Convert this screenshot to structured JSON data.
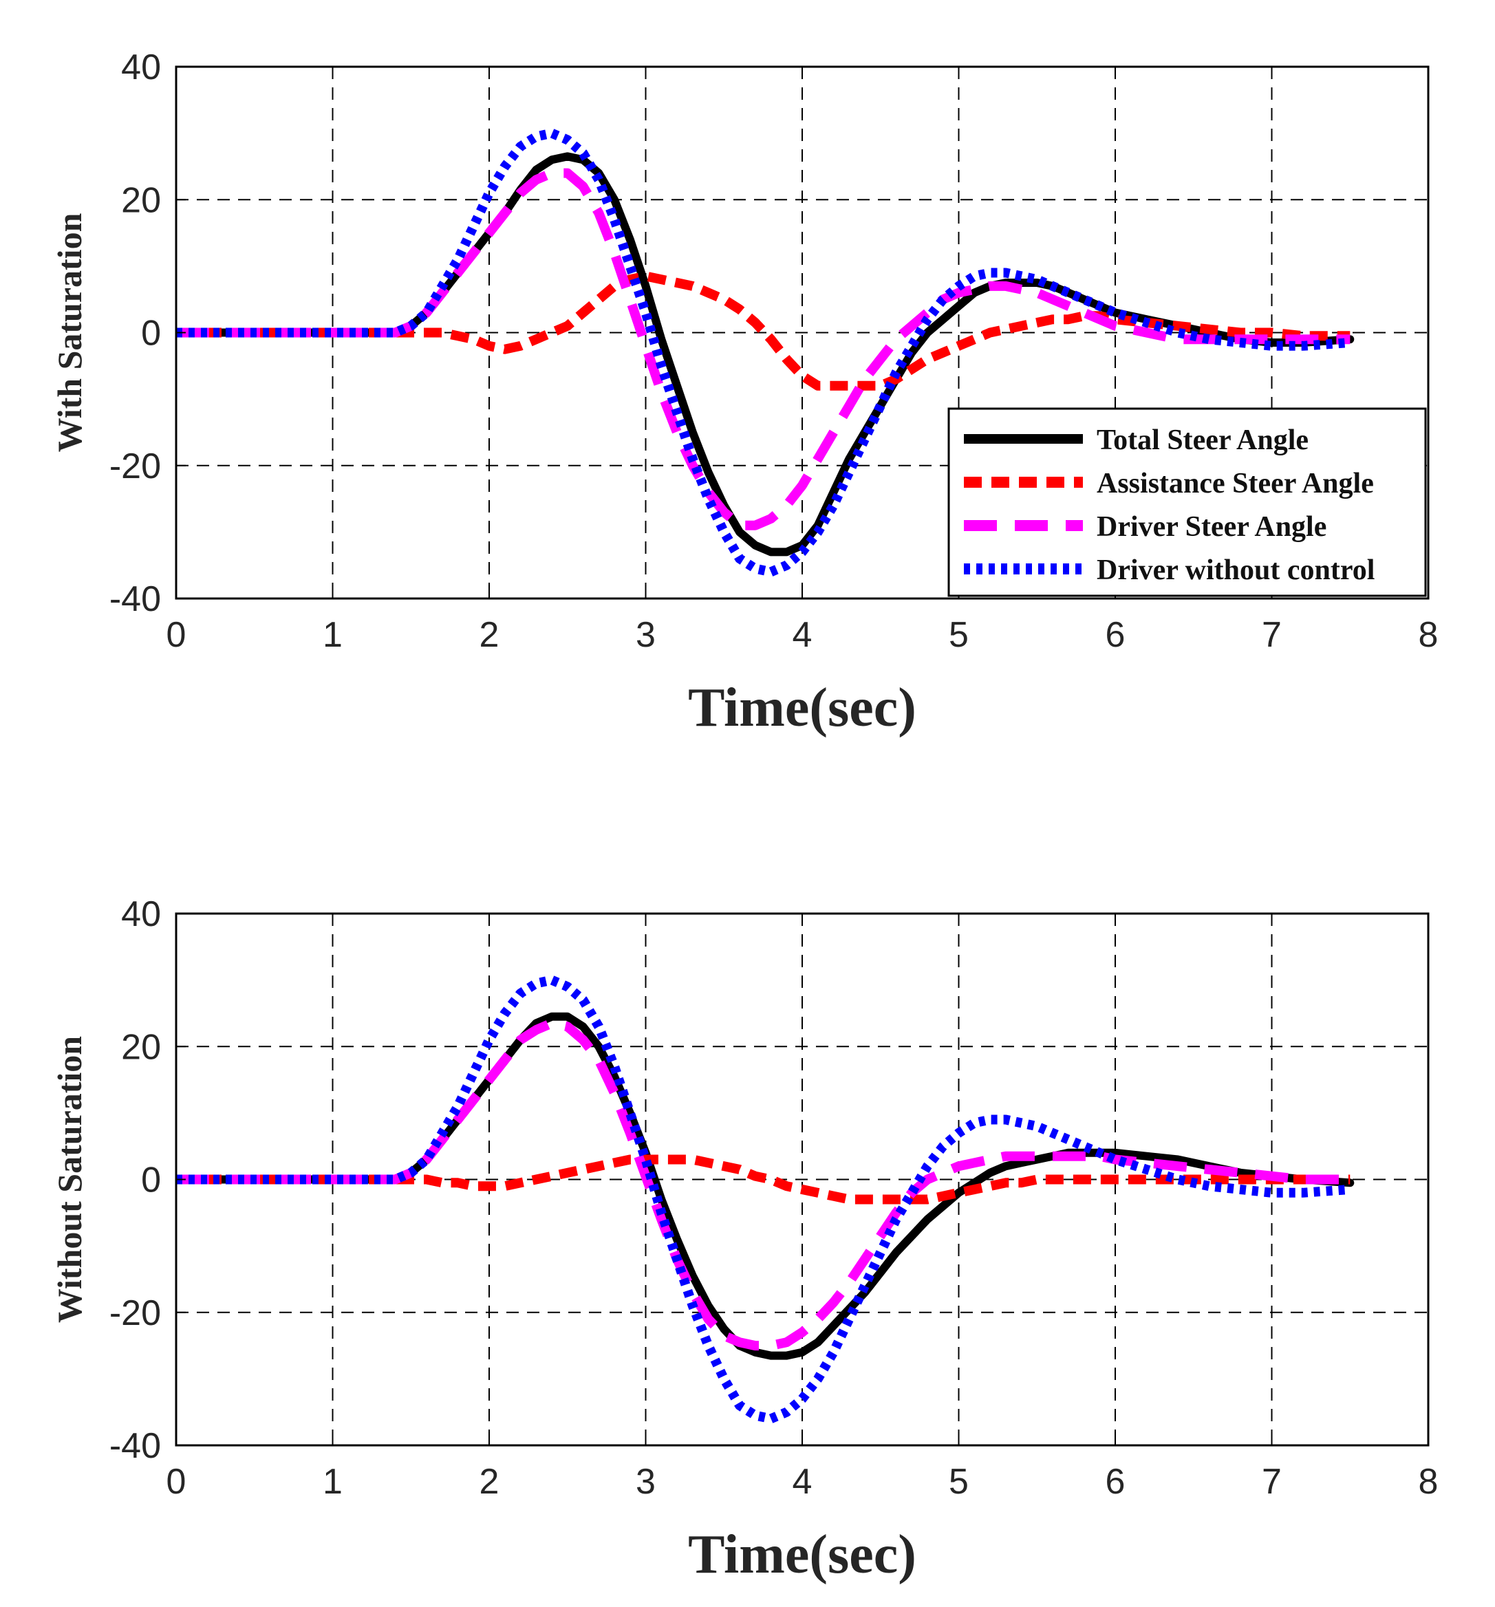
{
  "chart_data": [
    {
      "type": "line",
      "ylabel": "With Saturation",
      "xlabel": "Time(sec)",
      "xlim": [
        0,
        8
      ],
      "ylim": [
        -40,
        40
      ],
      "xticks": [
        "0",
        "1",
        "2",
        "3",
        "4",
        "5",
        "6",
        "7",
        "8"
      ],
      "yticks": [
        "40",
        "20",
        "0",
        "-20",
        "-40"
      ],
      "grid": true,
      "legend": "bottom-right",
      "x": [
        0,
        0.5,
        1.0,
        1.4,
        1.5,
        1.6,
        1.7,
        1.8,
        1.9,
        2.0,
        2.1,
        2.2,
        2.3,
        2.4,
        2.5,
        2.6,
        2.7,
        2.8,
        2.9,
        3.0,
        3.1,
        3.2,
        3.3,
        3.4,
        3.5,
        3.6,
        3.7,
        3.8,
        3.9,
        4.0,
        4.1,
        4.2,
        4.3,
        4.4,
        4.5,
        4.6,
        4.7,
        4.8,
        4.9,
        5.0,
        5.1,
        5.2,
        5.3,
        5.4,
        5.5,
        5.6,
        5.7,
        5.8,
        5.9,
        6.0,
        6.2,
        6.4,
        6.6,
        6.8,
        7.0,
        7.2,
        7.5
      ],
      "series": [
        {
          "name": "Total Steer Angle",
          "color": "#000000",
          "style": "solid",
          "values": [
            0,
            0,
            0,
            0,
            1,
            3,
            6,
            9,
            12,
            15,
            18,
            21.5,
            24.5,
            26,
            26.5,
            26,
            24,
            20,
            14,
            7,
            -1,
            -8,
            -15,
            -21,
            -26,
            -30,
            -32,
            -33,
            -33,
            -32,
            -29,
            -24,
            -19,
            -15,
            -11,
            -7,
            -3,
            0,
            2,
            4,
            6,
            7,
            7.5,
            7.5,
            7.5,
            7,
            6,
            5,
            4,
            3,
            2,
            1,
            0,
            -1,
            -1.5,
            -1.5,
            -1
          ]
        },
        {
          "name": "Assistance Steer Angle",
          "color": "#ff0000",
          "style": "dashed",
          "values": [
            0,
            0,
            0,
            0,
            0,
            0,
            0,
            -0.5,
            -1,
            -2,
            -2.5,
            -2,
            -1,
            0,
            1,
            3,
            5,
            7,
            8,
            8.5,
            8,
            7.5,
            7,
            6,
            5,
            3.5,
            1.5,
            -1,
            -4,
            -6.5,
            -8,
            -8,
            -8,
            -8,
            -8,
            -7,
            -5.5,
            -4,
            -3,
            -2,
            -1,
            0,
            0.5,
            1,
            1.5,
            2,
            2,
            2.5,
            2.5,
            2,
            1.5,
            1,
            0.5,
            0,
            0,
            -0.5,
            -0.5
          ]
        },
        {
          "name": "Driver Steer Angle",
          "color": "#ff00ff",
          "style": "longdash",
          "values": [
            0,
            0,
            0,
            0,
            1,
            3,
            6,
            9,
            12,
            15,
            18,
            21,
            23,
            24,
            24,
            22,
            18,
            12,
            5,
            -2,
            -9,
            -15,
            -20,
            -24,
            -27,
            -29,
            -29,
            -28,
            -26,
            -23,
            -19,
            -15,
            -11,
            -7,
            -4,
            -1,
            1,
            3,
            5,
            6,
            6.5,
            7,
            7,
            6.5,
            6,
            5,
            4,
            3,
            2,
            1,
            0,
            -1,
            -1,
            -1,
            -1,
            -1,
            -1
          ]
        },
        {
          "name": "Driver without control",
          "color": "#0000ff",
          "style": "dotted",
          "values": [
            0,
            0,
            0,
            0,
            1,
            3,
            7,
            11,
            16,
            21,
            25,
            28,
            29.5,
            30,
            29,
            27,
            23,
            17,
            10,
            3,
            -5,
            -12,
            -19,
            -25,
            -30,
            -34,
            -35.5,
            -36,
            -35,
            -33,
            -30,
            -26,
            -21,
            -16,
            -11,
            -6,
            -2,
            2,
            5,
            7,
            8.5,
            9,
            9,
            8.5,
            8,
            7,
            6,
            5,
            4,
            3,
            1.5,
            0,
            -1,
            -1.5,
            -2,
            -2,
            -1.5
          ]
        }
      ]
    },
    {
      "type": "line",
      "ylabel": "Without Saturation",
      "xlabel": "Time(sec)",
      "xlim": [
        0,
        8
      ],
      "ylim": [
        -40,
        40
      ],
      "xticks": [
        "0",
        "1",
        "2",
        "3",
        "4",
        "5",
        "6",
        "7",
        "8"
      ],
      "yticks": [
        "40",
        "20",
        "0",
        "-20",
        "-40"
      ],
      "grid": true,
      "x": [
        0,
        0.5,
        1.0,
        1.4,
        1.5,
        1.6,
        1.7,
        1.8,
        1.9,
        2.0,
        2.1,
        2.2,
        2.3,
        2.4,
        2.5,
        2.6,
        2.7,
        2.8,
        2.9,
        3.0,
        3.1,
        3.2,
        3.3,
        3.4,
        3.5,
        3.6,
        3.7,
        3.8,
        3.9,
        4.0,
        4.1,
        4.2,
        4.3,
        4.4,
        4.5,
        4.6,
        4.7,
        4.8,
        4.9,
        5.0,
        5.1,
        5.2,
        5.3,
        5.4,
        5.5,
        5.6,
        5.7,
        5.8,
        5.9,
        6.0,
        6.2,
        6.4,
        6.6,
        6.8,
        7.0,
        7.2,
        7.5
      ],
      "series": [
        {
          "name": "Total Steer Angle",
          "color": "#000000",
          "style": "solid",
          "values": [
            0,
            0,
            0,
            0,
            1,
            3,
            6,
            9,
            12,
            15,
            18,
            21,
            23.5,
            24.5,
            24.5,
            23,
            20,
            15.5,
            10,
            4,
            -3,
            -9,
            -14.5,
            -19,
            -22.5,
            -25,
            -26,
            -26.5,
            -26.5,
            -26,
            -24.5,
            -22,
            -19.5,
            -17,
            -14,
            -11,
            -8.5,
            -6,
            -4,
            -2,
            -0.5,
            1,
            2,
            2.5,
            3,
            3.5,
            4,
            4,
            4,
            4,
            3.5,
            3,
            2,
            1,
            0.5,
            0,
            -0.5
          ]
        },
        {
          "name": "Assistance Steer Angle",
          "color": "#ff0000",
          "style": "dashed",
          "values": [
            0,
            0,
            0,
            0,
            0,
            0,
            -0.5,
            -0.5,
            -1,
            -1,
            -1,
            -0.5,
            0,
            0.5,
            1,
            1.5,
            2,
            2.5,
            3,
            3,
            3,
            3,
            3,
            2.5,
            2,
            1.5,
            0.5,
            0,
            -1,
            -1.5,
            -2,
            -2.5,
            -3,
            -3,
            -3,
            -3,
            -3,
            -3,
            -2.5,
            -2,
            -1.5,
            -1,
            -0.5,
            -0.5,
            0,
            0,
            0,
            0,
            0,
            0,
            0,
            0,
            0,
            0,
            0,
            0,
            0
          ]
        },
        {
          "name": "Driver Steer Angle",
          "color": "#ff00ff",
          "style": "longdash",
          "values": [
            0,
            0,
            0,
            0,
            1,
            3,
            6,
            9,
            12,
            15,
            18,
            21,
            22.5,
            23.5,
            23,
            21,
            18,
            13,
            7,
            0.5,
            -6,
            -12,
            -17,
            -21,
            -23.5,
            -24.5,
            -25,
            -25,
            -24.5,
            -23,
            -21,
            -18.5,
            -15.5,
            -12,
            -8.5,
            -5,
            -2,
            0,
            1,
            2,
            2.5,
            3,
            3.5,
            3.5,
            3.5,
            3.5,
            3.5,
            3.5,
            3.5,
            3,
            2.5,
            2,
            1.5,
            1,
            0.5,
            0,
            0
          ]
        },
        {
          "name": "Driver without control",
          "color": "#0000ff",
          "style": "dotted",
          "values": [
            0,
            0,
            0,
            0,
            1,
            3,
            7,
            11,
            16,
            21,
            25,
            28,
            29.5,
            30,
            29,
            27,
            23,
            17,
            10,
            3,
            -5,
            -12,
            -19,
            -25,
            -30,
            -34,
            -35.5,
            -36,
            -35,
            -33,
            -30,
            -26,
            -21,
            -16,
            -11,
            -6,
            -2,
            2,
            5,
            7,
            8.5,
            9,
            9,
            8.5,
            8,
            7,
            6,
            5,
            4,
            3,
            1.5,
            0,
            -1,
            -1.5,
            -2,
            -2,
            -1.5
          ]
        }
      ]
    }
  ]
}
